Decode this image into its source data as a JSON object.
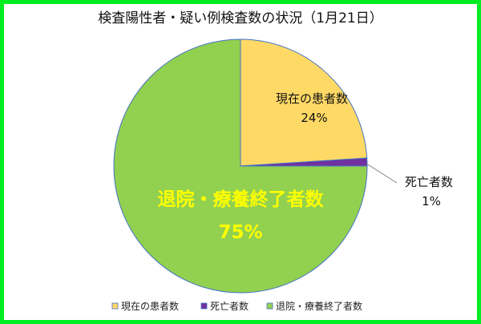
{
  "chart_data": {
    "type": "pie",
    "title": "検査陽性者・疑い例検査数の状況（1月21日）",
    "slices": [
      {
        "name": "現在の患者数",
        "value": 24,
        "label": "24%",
        "color": "#ffd966"
      },
      {
        "name": "死亡者数",
        "value": 1,
        "label": "1%",
        "color": "#7030a0"
      },
      {
        "name": "退院・療養終了者数",
        "value": 75,
        "label": "75%",
        "color": "#92d050"
      }
    ],
    "legend": {
      "position": "bottom",
      "items": [
        "現在の患者数",
        "死亡者数",
        "退院・療養終了者数"
      ]
    }
  },
  "colors": {
    "frame": "#00ee22",
    "slice_outline": "#4472c4"
  }
}
